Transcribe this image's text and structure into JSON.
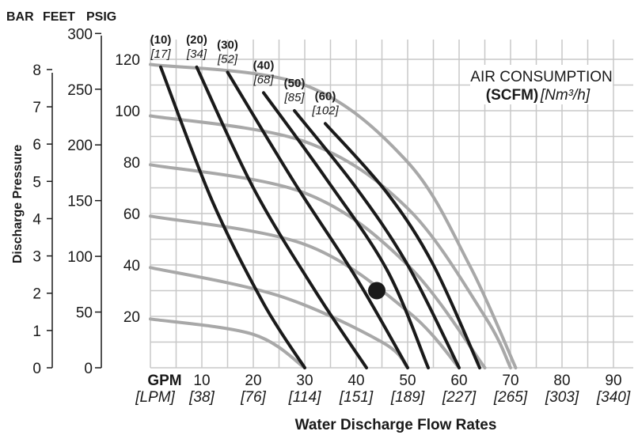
{
  "header": {
    "bar_label": "BAR",
    "feet_label": "FEET",
    "psig_label": "PSIG"
  },
  "y_axis_title": "Discharge Pressure",
  "x_axis_title": "Water Discharge Flow Rates",
  "legend": {
    "line1": "AIR CONSUMPTION",
    "line2_bold": "(SCFM)",
    "line2_unit": "[Nm³/h]"
  },
  "x_unit_primary": "GPM",
  "x_unit_secondary": "[LPM]",
  "colors": {
    "air_curve": "#1a1a1a",
    "pressure_curve": "#a8a8a8",
    "grid": "#c8c8c8",
    "operating_point": "#1a1a1a"
  },
  "chart_data": {
    "type": "line",
    "title": "",
    "xlabel": "Water Discharge Flow Rates",
    "ylabel": "Discharge Pressure",
    "x_range_gpm": [
      0,
      95
    ],
    "y_range_psig": [
      0,
      125
    ],
    "grid": true,
    "x_ticks": [
      {
        "gpm": 10,
        "lpm": "[38]"
      },
      {
        "gpm": 20,
        "lpm": "[76]"
      },
      {
        "gpm": 30,
        "lpm": "[114]"
      },
      {
        "gpm": 40,
        "lpm": "[151]"
      },
      {
        "gpm": 50,
        "lpm": "[189]"
      },
      {
        "gpm": 60,
        "lpm": "[227]"
      },
      {
        "gpm": 70,
        "lpm": "[265]"
      },
      {
        "gpm": 80,
        "lpm": "[303]"
      },
      {
        "gpm": 90,
        "lpm": "[340]"
      }
    ],
    "y_ticks_psig": [
      20,
      40,
      60,
      80,
      100,
      120
    ],
    "y_ticks_feet": [
      0,
      50,
      100,
      150,
      200,
      250,
      300
    ],
    "y_ticks_bar": [
      0,
      1,
      2,
      3,
      4,
      5,
      6,
      7,
      8
    ],
    "air_consumption_curves": [
      {
        "scfm": "(10)",
        "nm3h": "[17]",
        "points": [
          [
            2,
            117
          ],
          [
            12,
            65
          ],
          [
            22,
            25
          ],
          [
            30,
            0
          ]
        ]
      },
      {
        "scfm": "(20)",
        "nm3h": "[34]",
        "points": [
          [
            9,
            117
          ],
          [
            20,
            70
          ],
          [
            32,
            30
          ],
          [
            42,
            0
          ]
        ]
      },
      {
        "scfm": "(30)",
        "nm3h": "[52]",
        "points": [
          [
            15,
            115
          ],
          [
            28,
            72
          ],
          [
            40,
            35
          ],
          [
            50,
            0
          ]
        ]
      },
      {
        "scfm": "(40)",
        "nm3h": "[68]",
        "points": [
          [
            22,
            107
          ],
          [
            34,
            74
          ],
          [
            46,
            38
          ],
          [
            54,
            0
          ]
        ]
      },
      {
        "scfm": "(50)",
        "nm3h": "[85]",
        "points": [
          [
            28,
            100
          ],
          [
            40,
            70
          ],
          [
            50,
            40
          ],
          [
            60,
            0
          ]
        ]
      },
      {
        "scfm": "(60)",
        "nm3h": "[102]",
        "points": [
          [
            34,
            95
          ],
          [
            46,
            68
          ],
          [
            55,
            40
          ],
          [
            64,
            0
          ]
        ]
      }
    ],
    "pressure_curves": [
      {
        "points": [
          [
            0,
            118
          ],
          [
            30,
            110
          ],
          [
            50,
            80
          ],
          [
            62,
            40
          ],
          [
            71,
            0
          ]
        ]
      },
      {
        "points": [
          [
            0,
            98
          ],
          [
            30,
            88
          ],
          [
            50,
            62
          ],
          [
            65,
            20
          ],
          [
            70,
            0
          ]
        ]
      },
      {
        "points": [
          [
            0,
            79
          ],
          [
            30,
            68
          ],
          [
            50,
            40
          ],
          [
            65,
            0
          ]
        ]
      },
      {
        "points": [
          [
            0,
            59
          ],
          [
            30,
            48
          ],
          [
            50,
            22
          ],
          [
            60,
            0
          ]
        ]
      },
      {
        "points": [
          [
            0,
            39
          ],
          [
            25,
            28
          ],
          [
            45,
            10
          ],
          [
            50,
            0
          ]
        ]
      },
      {
        "points": [
          [
            0,
            19
          ],
          [
            20,
            13
          ],
          [
            30,
            0
          ]
        ]
      }
    ],
    "operating_point": {
      "gpm": 44,
      "psig": 30
    }
  }
}
